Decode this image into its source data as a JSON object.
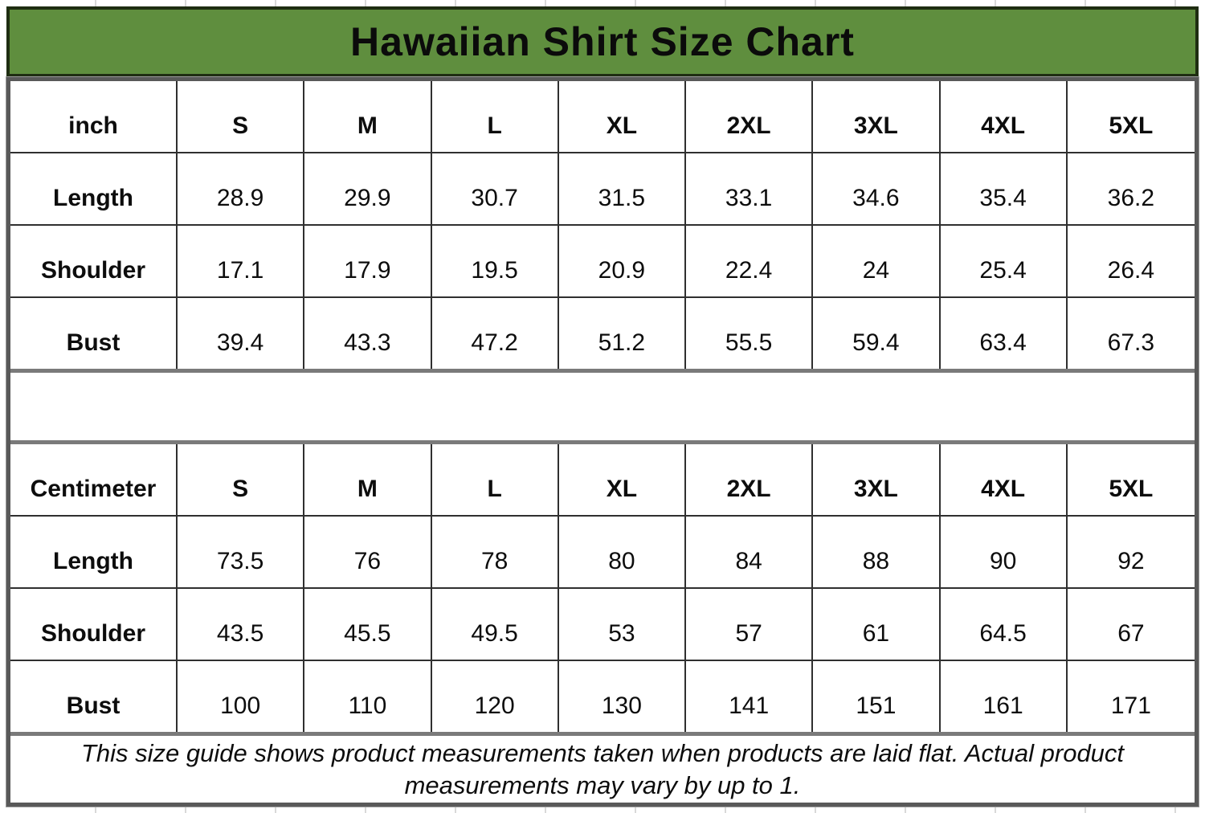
{
  "title": "Hawaiian Shirt Size Chart",
  "note": {
    "line1": "This size guide shows product measurements taken when products are laid flat. Actual product",
    "line2": "measurements may vary by up to 1."
  },
  "tables": [
    {
      "unit": "inch",
      "sizes": [
        "S",
        "M",
        "L",
        "XL",
        "2XL",
        "3XL",
        "4XL",
        "5XL"
      ],
      "rows": [
        {
          "label": "Length",
          "values": [
            "28.9",
            "29.9",
            "30.7",
            "31.5",
            "33.1",
            "34.6",
            "35.4",
            "36.2"
          ]
        },
        {
          "label": "Shoulder",
          "values": [
            "17.1",
            "17.9",
            "19.5",
            "20.9",
            "22.4",
            "24",
            "25.4",
            "26.4"
          ]
        },
        {
          "label": "Bust",
          "values": [
            "39.4",
            "43.3",
            "47.2",
            "51.2",
            "55.5",
            "59.4",
            "63.4",
            "67.3"
          ]
        }
      ]
    },
    {
      "unit": "Centimeter",
      "sizes": [
        "S",
        "M",
        "L",
        "XL",
        "2XL",
        "3XL",
        "4XL",
        "5XL"
      ],
      "rows": [
        {
          "label": "Length",
          "values": [
            "73.5",
            "76",
            "78",
            "80",
            "84",
            "88",
            "90",
            "92"
          ]
        },
        {
          "label": "Shoulder",
          "values": [
            "43.5",
            "45.5",
            "49.5",
            "53",
            "57",
            "61",
            "64.5",
            "67"
          ]
        },
        {
          "label": "Bust",
          "values": [
            "100",
            "110",
            "120",
            "130",
            "141",
            "151",
            "161",
            "171"
          ]
        }
      ]
    }
  ],
  "colors": {
    "title_bg": "#5f8e3e",
    "title_border": "#1f2d12",
    "cell_border": "#2f2f2f",
    "section_border": "#7a7a7a",
    "frame_border": "#595959",
    "text": "#0d0d0d",
    "gridline": "#d9d9d9"
  },
  "chart_data": [
    {
      "type": "table",
      "title": "Hawaiian Shirt Size Chart",
      "unit": "inch",
      "columns": [
        "inch",
        "S",
        "M",
        "L",
        "XL",
        "2XL",
        "3XL",
        "4XL",
        "5XL"
      ],
      "rows": [
        [
          "Length",
          28.9,
          29.9,
          30.7,
          31.5,
          33.1,
          34.6,
          35.4,
          36.2
        ],
        [
          "Shoulder",
          17.1,
          17.9,
          19.5,
          20.9,
          22.4,
          24,
          25.4,
          26.4
        ],
        [
          "Bust",
          39.4,
          43.3,
          47.2,
          51.2,
          55.5,
          59.4,
          63.4,
          67.3
        ]
      ]
    },
    {
      "type": "table",
      "title": "Hawaiian Shirt Size Chart",
      "unit": "Centimeter",
      "columns": [
        "Centimeter",
        "S",
        "M",
        "L",
        "XL",
        "2XL",
        "3XL",
        "4XL",
        "5XL"
      ],
      "rows": [
        [
          "Length",
          73.5,
          76,
          78,
          80,
          84,
          88,
          90,
          92
        ],
        [
          "Shoulder",
          43.5,
          45.5,
          49.5,
          53,
          57,
          61,
          64.5,
          67
        ],
        [
          "Bust",
          100,
          110,
          120,
          130,
          141,
          151,
          161,
          171
        ]
      ]
    }
  ]
}
